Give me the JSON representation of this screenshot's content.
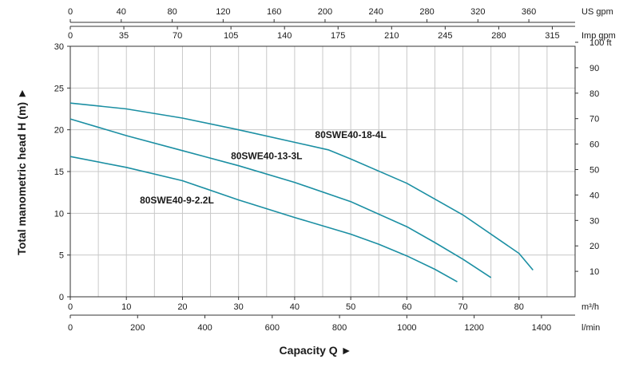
{
  "chart_data": {
    "type": "line",
    "title": "",
    "ylabel": "Total manometric head H (m)",
    "xlabel": "Capacity Q",
    "arrow": "►",
    "ylim": [
      0,
      30
    ],
    "xlim": [
      0,
      90
    ],
    "left_axis": {
      "ticks": [
        0,
        5,
        10,
        15,
        20,
        25,
        30
      ]
    },
    "right_axis": {
      "unit": "ft",
      "ticks": [
        10,
        20,
        30,
        40,
        50,
        60,
        70,
        80,
        90,
        100
      ]
    },
    "top_axis_us": {
      "unit": "US gpm",
      "ticks": [
        0,
        40,
        80,
        120,
        160,
        200,
        240,
        280,
        320,
        360
      ]
    },
    "top_axis_imp": {
      "unit": "Imp gpm",
      "ticks": [
        0,
        35,
        70,
        105,
        140,
        175,
        210,
        245,
        280,
        315
      ]
    },
    "bottom_axis_m3h": {
      "unit": "m³/h",
      "ticks": [
        0,
        10,
        20,
        30,
        40,
        50,
        60,
        70,
        80
      ]
    },
    "bottom_axis_lmin": {
      "unit": "l/min",
      "ticks": [
        0,
        200,
        400,
        600,
        800,
        1000,
        1200,
        1400
      ]
    },
    "grid": true,
    "line_color": "#1b8fa3",
    "series": [
      {
        "name": "80SWE40-18-4L",
        "points": [
          [
            0,
            23.2
          ],
          [
            10,
            22.5
          ],
          [
            20,
            21.4
          ],
          [
            30,
            20.0
          ],
          [
            40,
            18.5
          ],
          [
            46,
            17.6
          ],
          [
            50,
            16.5
          ],
          [
            60,
            13.6
          ],
          [
            70,
            9.8
          ],
          [
            80,
            5.2
          ],
          [
            82.5,
            3.2
          ]
        ]
      },
      {
        "name": "80SWE40-13-3L",
        "points": [
          [
            0,
            21.3
          ],
          [
            10,
            19.3
          ],
          [
            20,
            17.5
          ],
          [
            30,
            15.7
          ],
          [
            40,
            13.7
          ],
          [
            50,
            11.4
          ],
          [
            60,
            8.4
          ],
          [
            65,
            6.5
          ],
          [
            70,
            4.5
          ],
          [
            75,
            2.3
          ]
        ]
      },
      {
        "name": "80SWE40-9-2.2L",
        "points": [
          [
            0,
            16.8
          ],
          [
            10,
            15.5
          ],
          [
            20,
            13.9
          ],
          [
            30,
            11.6
          ],
          [
            40,
            9.5
          ],
          [
            50,
            7.5
          ],
          [
            55,
            6.3
          ],
          [
            60,
            4.9
          ],
          [
            65,
            3.3
          ],
          [
            69,
            1.8
          ]
        ]
      }
    ]
  }
}
